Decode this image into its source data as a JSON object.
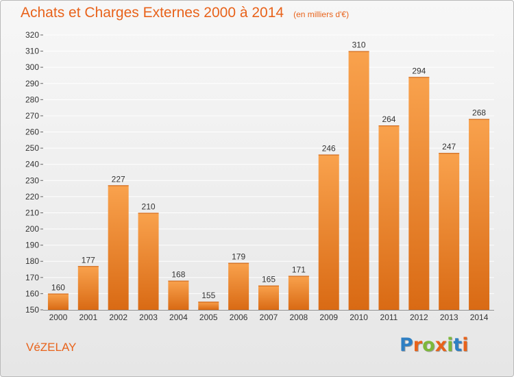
{
  "header": {
    "title": "Achats et Charges Externes 2000 à 2014",
    "unit_note": "(en milliers d'€)"
  },
  "footer": {
    "commune": "VéZELAY",
    "logo": {
      "text": "Proxiti",
      "letter_colors": [
        "#2e7fc3",
        "#e8621a",
        "#7db83a",
        "#e8621a",
        "#7db83a",
        "#2e7fc3",
        "#e8621a"
      ]
    }
  },
  "colors": {
    "bar_top": "#f9a24d",
    "bar_bottom": "#d96a14",
    "text": "#333333",
    "grid": "#ffffff",
    "accent": "#e8621a"
  },
  "chart_data": {
    "type": "bar",
    "title": "Achats et Charges Externes 2000 à 2014",
    "subtitle": "(en milliers d'€)",
    "xlabel": "",
    "ylabel": "",
    "categories": [
      "2000",
      "2001",
      "2002",
      "2003",
      "2004",
      "2005",
      "2006",
      "2007",
      "2008",
      "2009",
      "2010",
      "2011",
      "2012",
      "2013",
      "2014"
    ],
    "values": [
      160,
      177,
      227,
      210,
      168,
      155,
      179,
      165,
      171,
      246,
      310,
      264,
      294,
      247,
      268
    ],
    "ylim": [
      150,
      320
    ],
    "ytick_step": 10,
    "grid": true,
    "data_labels": true,
    "legend": "none"
  }
}
